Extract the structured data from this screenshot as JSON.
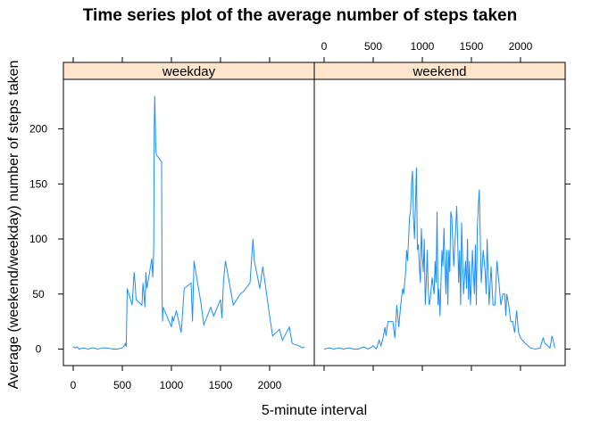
{
  "chart_data": {
    "type": "line",
    "title": "Time series plot of the average number of steps taken",
    "xlabel": "5-minute interval",
    "ylabel": "Average (weekend/weekday) number of steps taken",
    "xlim": [
      -100,
      2455
    ],
    "ylim": [
      -15,
      245
    ],
    "x_ticks": [
      0,
      500,
      1000,
      1500,
      2000
    ],
    "y_ticks": [
      0,
      50,
      100,
      150,
      200
    ],
    "x_tick_labels": [
      "0",
      "500",
      "1000",
      "1500",
      "2000"
    ],
    "y_tick_labels": [
      "0",
      "50",
      "100",
      "150",
      "200"
    ],
    "colors": {
      "line": "#1f8ef1",
      "strip": "#ffe5cc"
    },
    "panels": [
      {
        "name": "weekday",
        "x": [
          0,
          20,
          40,
          60,
          100,
          150,
          200,
          250,
          300,
          350,
          400,
          450,
          500,
          520,
          530,
          540,
          550,
          600,
          620,
          630,
          640,
          700,
          710,
          720,
          730,
          740,
          750,
          800,
          810,
          815,
          820,
          825,
          830,
          835,
          840,
          845,
          850,
          900,
          905,
          910,
          915,
          930,
          1000,
          1010,
          1020,
          1050,
          1100,
          1130,
          1200,
          1215,
          1230,
          1300,
          1330,
          1400,
          1430,
          1500,
          1515,
          1530,
          1550,
          1600,
          1630,
          1700,
          1730,
          1800,
          1830,
          1845,
          1900,
          1930,
          2000,
          2030,
          2100,
          2130,
          2200,
          2230,
          2300,
          2330,
          2355
        ],
        "y": [
          2,
          1,
          2,
          0,
          1,
          0,
          1,
          0,
          1,
          1,
          0,
          0,
          1,
          3,
          5,
          2,
          55,
          40,
          70,
          60,
          45,
          40,
          60,
          50,
          38,
          70,
          55,
          82,
          65,
          75,
          95,
          200,
          230,
          210,
          185,
          178,
          176,
          170,
          50,
          25,
          38,
          35,
          20,
          30,
          25,
          35,
          15,
          55,
          60,
          25,
          80,
          42,
          22,
          38,
          30,
          45,
          28,
          62,
          80,
          55,
          40,
          50,
          52,
          60,
          100,
          80,
          55,
          75,
          30,
          12,
          18,
          8,
          20,
          5,
          3,
          1,
          2
        ]
      },
      {
        "name": "weekend",
        "x": [
          0,
          50,
          100,
          150,
          200,
          250,
          300,
          350,
          400,
          450,
          500,
          520,
          530,
          540,
          550,
          560,
          580,
          600,
          620,
          630,
          650,
          700,
          720,
          740,
          760,
          780,
          800,
          810,
          820,
          830,
          840,
          850,
          860,
          870,
          880,
          890,
          900,
          910,
          920,
          930,
          940,
          950,
          960,
          970,
          980,
          990,
          1000,
          1010,
          1020,
          1030,
          1040,
          1050,
          1060,
          1070,
          1080,
          1100,
          1120,
          1130,
          1140,
          1150,
          1160,
          1170,
          1180,
          1200,
          1210,
          1220,
          1230,
          1240,
          1250,
          1260,
          1270,
          1280,
          1290,
          1300,
          1320,
          1340,
          1350,
          1360,
          1370,
          1380,
          1390,
          1400,
          1420,
          1440,
          1450,
          1460,
          1470,
          1480,
          1490,
          1500,
          1510,
          1520,
          1530,
          1540,
          1550,
          1560,
          1570,
          1580,
          1600,
          1620,
          1640,
          1650,
          1660,
          1680,
          1700,
          1720,
          1740,
          1760,
          1780,
          1800,
          1820,
          1840,
          1850,
          1860,
          1880,
          1900,
          1920,
          1940,
          1960,
          1980,
          2000,
          2050,
          2100,
          2150,
          2200,
          2230,
          2250,
          2300,
          2320,
          2350
        ],
        "y": [
          0,
          1,
          0,
          1,
          0,
          1,
          0,
          0,
          2,
          0,
          3,
          1,
          0,
          2,
          5,
          8,
          3,
          10,
          20,
          12,
          25,
          25,
          10,
          40,
          20,
          40,
          55,
          50,
          60,
          70,
          90,
          80,
          100,
          120,
          125,
          150,
          162,
          120,
          100,
          130,
          165,
          90,
          95,
          75,
          60,
          110,
          85,
          70,
          100,
          40,
          60,
          90,
          55,
          40,
          45,
          65,
          50,
          80,
          60,
          125,
          40,
          55,
          30,
          90,
          75,
          110,
          80,
          50,
          90,
          40,
          90,
          70,
          125,
          120,
          75,
          110,
          130,
          100,
          60,
          90,
          40,
          115,
          50,
          80,
          55,
          100,
          45,
          80,
          40,
          60,
          90,
          70,
          50,
          95,
          40,
          110,
          130,
          145,
          60,
          90,
          70,
          50,
          100,
          40,
          75,
          40,
          40,
          80,
          60,
          40,
          50,
          50,
          30,
          50,
          40,
          25,
          25,
          15,
          35,
          15,
          10,
          5,
          1,
          0,
          1,
          10,
          5,
          1,
          12,
          1
        ]
      }
    ]
  }
}
